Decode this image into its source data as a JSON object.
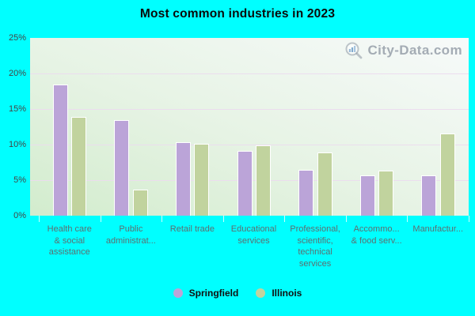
{
  "title": "Most common industries in 2023",
  "watermark": {
    "text": "City-Data.com"
  },
  "colors": {
    "background": "#00FFFF",
    "springfield_bar": "#BBA4D8",
    "illinois_bar": "#C1D39E",
    "gridline": "#EBDBEE",
    "plot_gradient_bottom_left": "#D2ECCD",
    "plot_gradient_top_right": "#F7FAFA",
    "axis_label": "#5D6E70",
    "ytick_label": "#454545"
  },
  "chart_data": {
    "type": "bar",
    "title": "Most common industries in 2023",
    "categories": [
      "Health care & social assistance",
      "Public administration",
      "Retail trade",
      "Educational services",
      "Professional, scientific, technical services",
      "Accommodation & food services",
      "Manufacturing"
    ],
    "category_display_lines": [
      [
        "Health care",
        "& social",
        "assistance"
      ],
      [
        "Public",
        "administrat..."
      ],
      [
        "Retail trade"
      ],
      [
        "Educational",
        "services"
      ],
      [
        "Professional,",
        "scientific,",
        "technical",
        "services"
      ],
      [
        "Accommo...",
        "& food serv..."
      ],
      [
        "Manufactur..."
      ]
    ],
    "series": [
      {
        "name": "Springfield",
        "color": "#BBA4D8",
        "values": [
          18.4,
          13.4,
          10.3,
          9.1,
          6.5,
          5.7,
          5.7
        ]
      },
      {
        "name": "Illinois",
        "color": "#C1D39E",
        "values": [
          13.9,
          3.7,
          10.1,
          9.9,
          8.9,
          6.3,
          11.6
        ]
      }
    ],
    "xlabel": "",
    "ylabel": "",
    "ylim": [
      0,
      25
    ],
    "yticks": [
      "0%",
      "5%",
      "10%",
      "15%",
      "20%",
      "25%"
    ],
    "grid": true,
    "legend_position": "bottom",
    "unit": "%"
  }
}
